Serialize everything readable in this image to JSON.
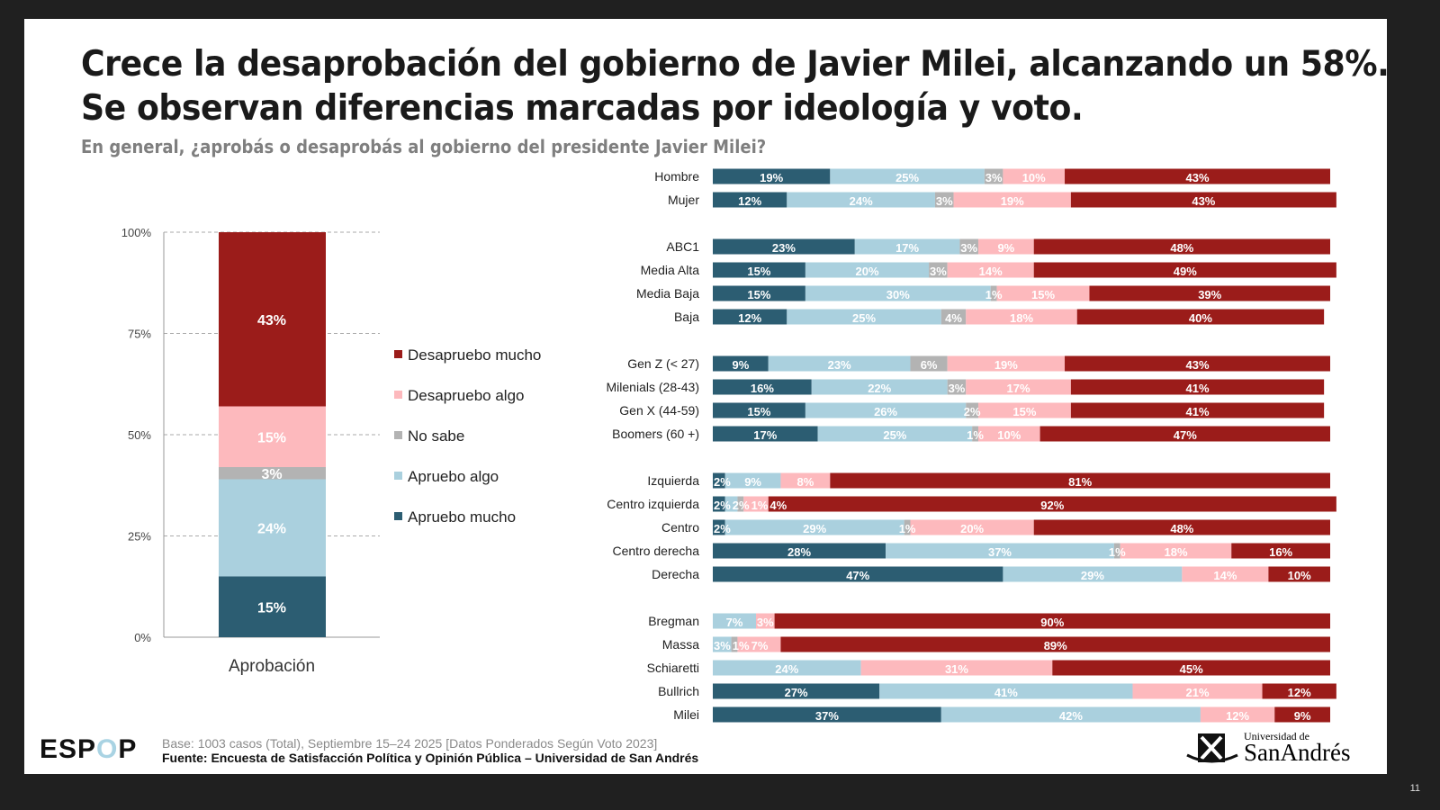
{
  "title_lines": [
    "Crece la desaprobación del gobierno de Javier Milei, alcanzando un 58%.",
    "Se observan diferencias marcadas por ideología y voto."
  ],
  "subtitle": "En general, ¿aprobás o desaprobás al gobierno del presidente Javier Milei?",
  "footer": {
    "logo": "ESPOP",
    "base": "Base: 1003 casos (Total), Septiembre 15–24 2025 [Datos Ponderados Según Voto 2023]",
    "source": "Fuente: Encuesta de Satisfacción Política y Opinión Pública – Universidad de San Andrés",
    "university_small": "Universidad de",
    "university_big": "SanAndrés",
    "page_number": "11"
  },
  "colors": {
    "Apruebo mucho": "#2c5d72",
    "Apruebo algo": "#aad0de",
    "No sabe": "#b3b3b3",
    "Desapruebo algo": "#fdb9bd",
    "Desapruebo mucho": "#9b1c1a"
  },
  "chart_data": [
    {
      "type": "bar",
      "stacked": true,
      "categories": [
        "Aprobación"
      ],
      "ylim": [
        0,
        100
      ],
      "yticks": [
        "0%",
        "25%",
        "50%",
        "75%",
        "100%"
      ],
      "grid": "dashed",
      "legend": "right",
      "series": [
        {
          "name": "Apruebo mucho",
          "values": [
            15
          ]
        },
        {
          "name": "Apruebo algo",
          "values": [
            24
          ]
        },
        {
          "name": "No sabe",
          "values": [
            3
          ]
        },
        {
          "name": "Desapruebo algo",
          "values": [
            15
          ]
        },
        {
          "name": "Desapruebo mucho",
          "values": [
            43
          ]
        }
      ],
      "legend_order": [
        "Desapruebo mucho",
        "Desapruebo algo",
        "No sabe",
        "Apruebo algo",
        "Apruebo mucho"
      ]
    },
    {
      "type": "bar",
      "orientation": "horizontal",
      "stacked": true,
      "xlim": [
        0,
        100
      ],
      "series_names": [
        "Apruebo mucho",
        "Apruebo algo",
        "No sabe",
        "Desapruebo algo",
        "Desapruebo mucho"
      ],
      "groups": [
        [
          {
            "label": "Hombre",
            "values": [
              19,
              25,
              3,
              10,
              43
            ]
          },
          {
            "label": "Mujer",
            "values": [
              12,
              24,
              3,
              19,
              43
            ]
          }
        ],
        [
          {
            "label": "ABC1",
            "values": [
              23,
              17,
              3,
              9,
              48
            ]
          },
          {
            "label": "Media Alta",
            "values": [
              15,
              20,
              3,
              14,
              49
            ]
          },
          {
            "label": "Media Baja",
            "values": [
              15,
              30,
              1,
              15,
              39
            ]
          },
          {
            "label": "Baja",
            "values": [
              12,
              25,
              4,
              18,
              40
            ]
          }
        ],
        [
          {
            "label": "Gen Z (< 27)",
            "values": [
              9,
              23,
              6,
              19,
              43
            ]
          },
          {
            "label": "Milenials (28-43)",
            "values": [
              16,
              22,
              3,
              17,
              41
            ]
          },
          {
            "label": "Gen X (44-59)",
            "values": [
              15,
              26,
              2,
              15,
              41
            ]
          },
          {
            "label": "Boomers (60 +)",
            "values": [
              17,
              25,
              1,
              10,
              47
            ]
          }
        ],
        [
          {
            "label": "Izquierda",
            "values": [
              2,
              9,
              0,
              8,
              81
            ]
          },
          {
            "label": "Centro izquierda",
            "values": [
              2,
              2,
              1,
              4,
              92
            ]
          },
          {
            "label": "Centro",
            "values": [
              2,
              29,
              1,
              20,
              48
            ]
          },
          {
            "label": "Centro derecha",
            "values": [
              28,
              37,
              1,
              18,
              16
            ]
          },
          {
            "label": "Derecha",
            "values": [
              47,
              29,
              0,
              14,
              10
            ]
          }
        ],
        [
          {
            "label": "Bregman",
            "values": [
              0,
              7,
              0,
              3,
              90
            ]
          },
          {
            "label": "Massa",
            "values": [
              0,
              3,
              1,
              7,
              89
            ]
          },
          {
            "label": "Schiaretti",
            "values": [
              0,
              24,
              0,
              31,
              45
            ]
          },
          {
            "label": "Bullrich",
            "values": [
              27,
              41,
              0,
              21,
              12
            ]
          },
          {
            "label": "Milei",
            "values": [
              37,
              42,
              0,
              12,
              9
            ]
          }
        ]
      ]
    }
  ]
}
